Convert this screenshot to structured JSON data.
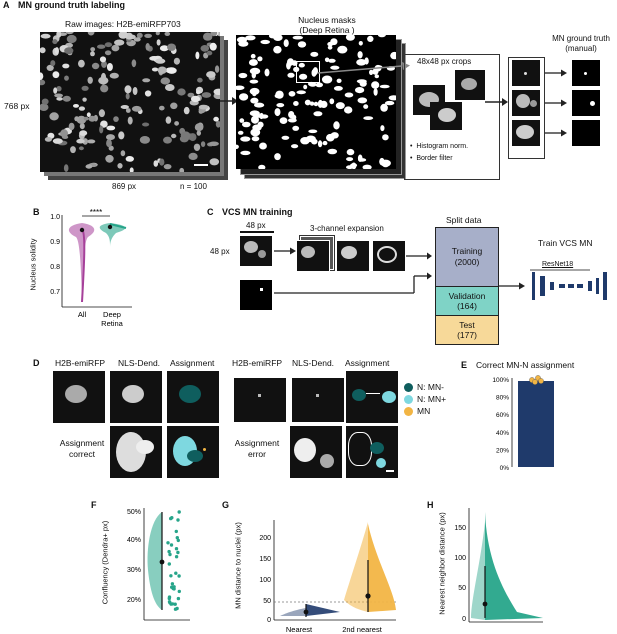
{
  "panelA": {
    "letter": "A",
    "title": "MN ground truth labeling",
    "raw_title": "Raw images: H2B-emiRFP703",
    "height_label": "768 px",
    "width_label": "869 px",
    "n_label": "n = 100",
    "masks_title": "Nucleus masks",
    "masks_subtitle": "(Deep Retina )",
    "crops_label": "48x48 px crops",
    "bullets": [
      "Histogram norm.",
      "Border filter"
    ],
    "gt_title": "MN ground truth",
    "gt_subtitle": "(manual)"
  },
  "panelB": {
    "letter": "B",
    "ylabel": "Nucleus solidity",
    "yticks": [
      "1.0",
      "0.9",
      "0.8",
      "0.7"
    ],
    "categories": [
      "All",
      "Deep",
      "Retina"
    ],
    "sig": "****",
    "colors": {
      "all": "#a6409a",
      "deep": "#27a58a"
    }
  },
  "panelC": {
    "letter": "C",
    "title": "VCS MN training",
    "px_top": "48 px",
    "px_left": "48 px",
    "expansion_label": "3-channel expansion",
    "split_title": "Split data",
    "training": "Training",
    "training_n": "(2000)",
    "validation": "Validation",
    "validation_n": "(164)",
    "test": "Test",
    "test_n": "(177)",
    "train_title": "Train VCS MN",
    "resnet": "ResNet18",
    "colors": {
      "training": "#a7afc9",
      "validation": "#7fd3c6",
      "test": "#f7d999",
      "net": "#1f3a6b"
    }
  },
  "panelD": {
    "letter": "D",
    "col_labels": [
      "H2B-emiRFP",
      "NLS-Dend.",
      "Assignment",
      "H2B-emiRFP",
      "NLS-Dend.",
      "Assignment"
    ],
    "correct_label": [
      "Assignment",
      "correct"
    ],
    "error_label": [
      "Assignment",
      "error"
    ],
    "legend": [
      {
        "label": "N: MN-",
        "color": "#0f5e5e"
      },
      {
        "label": "N: MN+",
        "color": "#7ed8e0"
      },
      {
        "label": "MN",
        "color": "#f2b544"
      }
    ]
  },
  "panelE": {
    "letter": "E",
    "title": "Correct MN-N assignment",
    "yticks": [
      "100%",
      "80%",
      "60%",
      "40%",
      "20%",
      "0%"
    ],
    "bar_color": "#1f3a6b"
  },
  "panelF": {
    "letter": "F",
    "ylabel": "Confluency (Dendra+ px)",
    "yticks": [
      "50%",
      "40%",
      "30%",
      "20%"
    ],
    "color": "#27a58a"
  },
  "panelG": {
    "letter": "G",
    "ylabel": "MN distance to nuclei (px)",
    "yticks": [
      "200",
      "150",
      "100",
      "50",
      "0"
    ],
    "categories": [
      "Nearest",
      "2nd nearest"
    ],
    "colors": {
      "nearest": "#1f3a6b",
      "second": "#f2b544"
    }
  },
  "panelH": {
    "letter": "H",
    "ylabel": "Nearest neighbor distance (px)",
    "yticks": [
      "150",
      "100",
      "50",
      "0"
    ],
    "color": "#27a58a"
  }
}
